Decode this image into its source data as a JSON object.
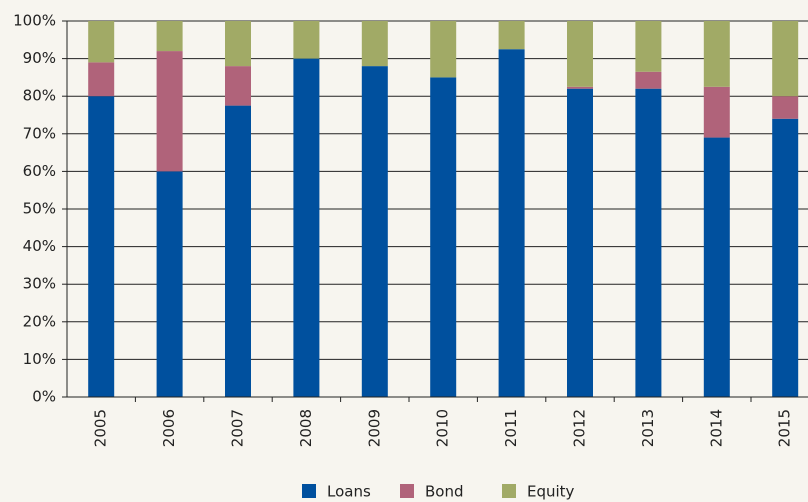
{
  "chart_data": {
    "type": "stacked_bar",
    "categories": [
      "2005",
      "2006",
      "2007",
      "2008",
      "2009",
      "2010",
      "2011",
      "2012",
      "2013",
      "2014",
      "2015"
    ],
    "series": [
      {
        "name": "Loans",
        "color": "#00509e",
        "values": [
          80,
          60,
          77.5,
          90,
          88,
          85,
          92.5,
          82,
          82,
          69,
          74
        ]
      },
      {
        "name": "Bond",
        "color": "#b0637a",
        "values": [
          9,
          32,
          10.5,
          0,
          0,
          0,
          0,
          0.5,
          4.5,
          13.5,
          6
        ]
      },
      {
        "name": "Equity",
        "color": "#a1aa66",
        "values": [
          11,
          8,
          12,
          10,
          12,
          15,
          7.5,
          17.5,
          13.5,
          17.5,
          20
        ]
      }
    ],
    "ylim": [
      0,
      100
    ],
    "yticks": [
      {
        "value": 0,
        "label": "0%"
      },
      {
        "value": 10,
        "label": "10%"
      },
      {
        "value": 20,
        "label": "20%"
      },
      {
        "value": 30,
        "label": "30%"
      },
      {
        "value": 40,
        "label": "40%"
      },
      {
        "value": 50,
        "label": "50%"
      },
      {
        "value": 60,
        "label": "60%"
      },
      {
        "value": 70,
        "label": "70%"
      },
      {
        "value": 80,
        "label": "80%"
      },
      {
        "value": 90,
        "label": "90%"
      },
      {
        "value": 100,
        "label": "100%"
      }
    ],
    "grid": true,
    "legend": "bottom"
  }
}
